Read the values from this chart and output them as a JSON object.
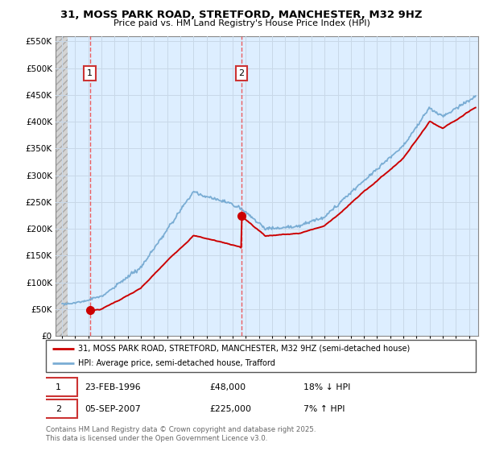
{
  "title": "31, MOSS PARK ROAD, STRETFORD, MANCHESTER, M32 9HZ",
  "subtitle": "Price paid vs. HM Land Registry's House Price Index (HPI)",
  "ylim": [
    0,
    560000
  ],
  "yticks": [
    0,
    50000,
    100000,
    150000,
    200000,
    250000,
    300000,
    350000,
    400000,
    450000,
    500000,
    550000
  ],
  "ytick_labels": [
    "£0",
    "£50K",
    "£100K",
    "£150K",
    "£200K",
    "£250K",
    "£300K",
    "£350K",
    "£400K",
    "£450K",
    "£500K",
    "£550K"
  ],
  "xlim_start": 1993.5,
  "xlim_end": 2025.7,
  "hatch_end": 1994.42,
  "transaction1_x": 1996.12,
  "transaction1_y": 48000,
  "transaction2_x": 2007.67,
  "transaction2_y": 225000,
  "legend_line1": "31, MOSS PARK ROAD, STRETFORD, MANCHESTER, M32 9HZ (semi-detached house)",
  "legend_line2": "HPI: Average price, semi-detached house, Trafford",
  "annotation1_date": "23-FEB-1996",
  "annotation1_price": "£48,000",
  "annotation1_hpi": "18% ↓ HPI",
  "annotation2_date": "05-SEP-2007",
  "annotation2_price": "£225,000",
  "annotation2_hpi": "7% ↑ HPI",
  "footer": "Contains HM Land Registry data © Crown copyright and database right 2025.\nThis data is licensed under the Open Government Licence v3.0.",
  "line_color_red": "#cc0000",
  "line_color_blue": "#7aadd4",
  "grid_color": "#c8d8e8",
  "bg_color": "#ddeeff",
  "hatch_bg": "#d4d4d4"
}
